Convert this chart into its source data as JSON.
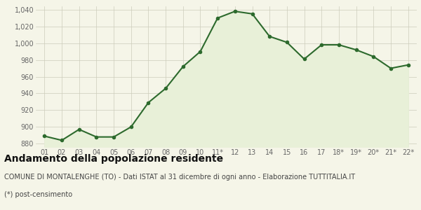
{
  "x_labels": [
    "01",
    "02",
    "03",
    "04",
    "05",
    "06",
    "07",
    "08",
    "09",
    "10",
    "11*",
    "12",
    "13",
    "14",
    "15",
    "16",
    "17",
    "18*",
    "19*",
    "20*",
    "21*",
    "22*"
  ],
  "y_values": [
    889,
    884,
    897,
    888,
    888,
    900,
    929,
    946,
    972,
    990,
    1030,
    1038,
    1035,
    1008,
    1001,
    981,
    998,
    998,
    992,
    984,
    970,
    974
  ],
  "line_color": "#2d6a2d",
  "fill_color": "#e8f0d8",
  "marker": "o",
  "marker_size": 3,
  "line_width": 1.5,
  "ylim_min": 876,
  "ylim_max": 1044,
  "yticks": [
    880,
    900,
    920,
    940,
    960,
    980,
    1000,
    1020,
    1040
  ],
  "ytick_labels": [
    "880",
    "900",
    "920",
    "940",
    "960",
    "980",
    "1,000",
    "1,020",
    "1,040"
  ],
  "bg_color": "#f5f5e8",
  "grid_color": "#ccccbb",
  "fig_bg_color": "#f5f5e8",
  "title": "Andamento della popolazione residente",
  "subtitle": "COMUNE DI MONTALENGHE (TO) - Dati ISTAT al 31 dicembre di ogni anno - Elaborazione TUTTITALIA.IT",
  "footnote": "(*) post-censimento",
  "title_fontsize": 10,
  "subtitle_fontsize": 7,
  "footnote_fontsize": 7,
  "tick_fontsize": 7,
  "tick_color": "#666666"
}
